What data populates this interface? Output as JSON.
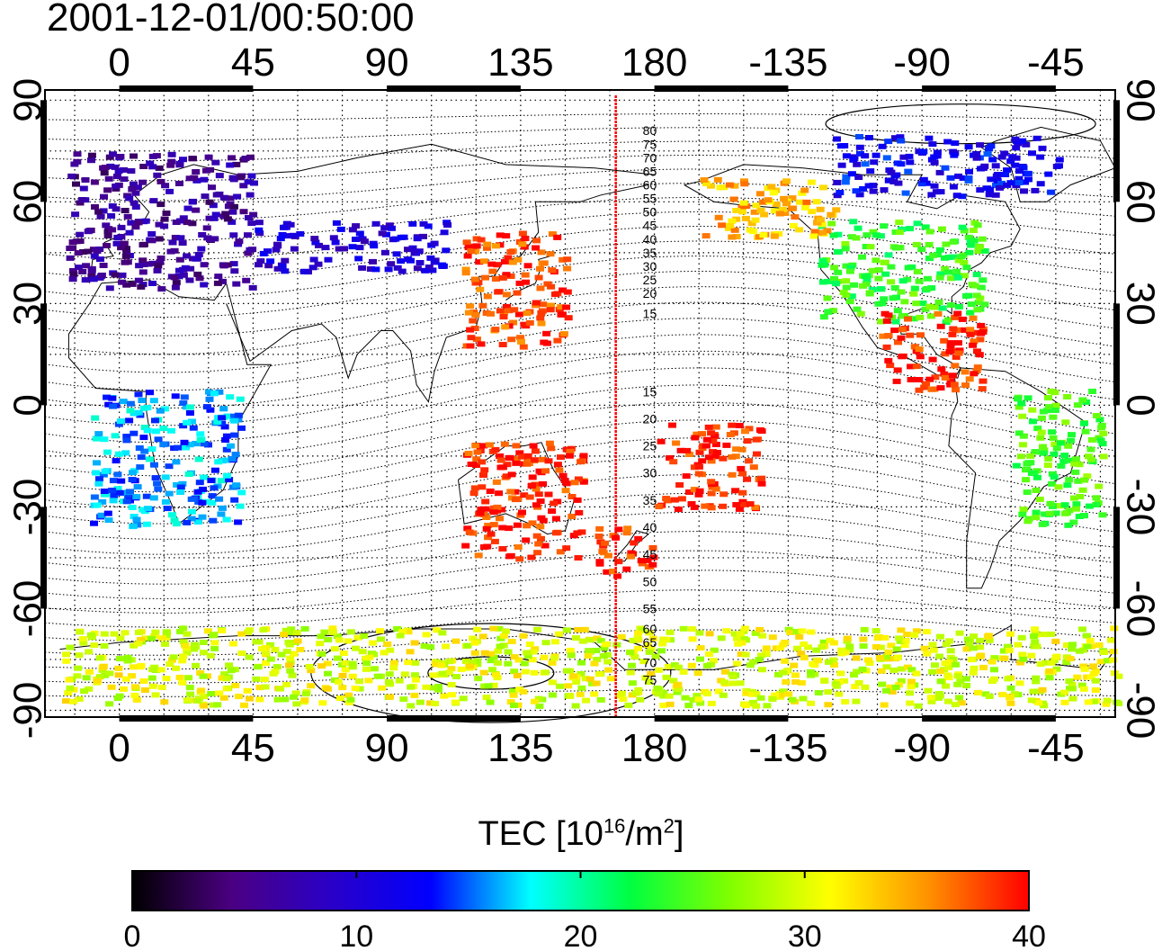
{
  "timestamp": "2001-12-01/00:50:00",
  "map": {
    "lon_ticks": [
      "0",
      "45",
      "90",
      "135",
      "180",
      "-135",
      "-90",
      "-45"
    ],
    "lon_tick_values": [
      0,
      45,
      90,
      135,
      180,
      225,
      270,
      315
    ],
    "lon_range": [
      -25,
      335
    ],
    "lat_ticks": [
      "90",
      "60",
      "30",
      "0",
      "-30",
      "-60",
      "-90"
    ],
    "lat_tick_values": [
      90,
      60,
      30,
      0,
      -30,
      -60,
      -90
    ],
    "lat_range": [
      -92,
      93
    ],
    "grid": "dotted 15 deg",
    "meridian_marker_lon": 167,
    "meridian_marker_color": "#ff0000",
    "magnetic_contour_labels": [
      "80",
      "75",
      "70",
      "65",
      "60",
      "55",
      "50",
      "45",
      "40",
      "35",
      "30",
      "25",
      "20",
      "15",
      "15",
      "20",
      "25",
      "30",
      "35",
      "40",
      "45",
      "50",
      "55",
      "60",
      "65",
      "70",
      "75"
    ],
    "magnetic_contour_label_lats": [
      81,
      77,
      73,
      69,
      65,
      61,
      57,
      53,
      49,
      45,
      41,
      37,
      33,
      27,
      4,
      -4,
      -12,
      -20,
      -28,
      -36,
      -44,
      -52,
      -60,
      -66,
      -70,
      -76,
      -81
    ]
  },
  "colorbar": {
    "title_main": "TEC  [10",
    "title_exp": "16",
    "title_mid": "/m",
    "title_exp2": "2",
    "title_end": "]",
    "tick_labels": [
      "0",
      "10",
      "20",
      "30",
      "40"
    ],
    "range": [
      0,
      40
    ],
    "stops": [
      "#000000",
      "#4b0082",
      "#2a00c8",
      "#0000ff",
      "#00ffff",
      "#00ff40",
      "#80ff00",
      "#ffff00",
      "#ff9000",
      "#ff0000"
    ]
  },
  "tec_regions": [
    {
      "name": "europe",
      "lon": [
        -18,
        45
      ],
      "lat": [
        35,
        75
      ],
      "tec": 6
    },
    {
      "name": "russia-north",
      "lon": [
        45,
        110
      ],
      "lat": [
        40,
        55
      ],
      "tec": 10
    },
    {
      "name": "japan-china",
      "lon": [
        115,
        150
      ],
      "lat": [
        18,
        52
      ],
      "tec": 38
    },
    {
      "name": "north-america",
      "lon": [
        235,
        290
      ],
      "lat": [
        25,
        55
      ],
      "tec": 24
    },
    {
      "name": "alaska-canada-west",
      "lon": [
        195,
        240
      ],
      "lat": [
        50,
        68
      ],
      "tec": 34
    },
    {
      "name": "arctic-canada",
      "lon": [
        240,
        315
      ],
      "lat": [
        62,
        80
      ],
      "tec": 12
    },
    {
      "name": "central-america",
      "lon": [
        255,
        290
      ],
      "lat": [
        5,
        28
      ],
      "tec": 39
    },
    {
      "name": "australia",
      "lon": [
        115,
        155
      ],
      "lat": [
        -45,
        -10
      ],
      "tec": 39
    },
    {
      "name": "new-zealand",
      "lon": [
        160,
        180
      ],
      "lat": [
        -50,
        -35
      ],
      "tec": 39
    },
    {
      "name": "pacific-south",
      "lon": [
        180,
        215
      ],
      "lat": [
        -30,
        -5
      ],
      "tec": 39
    },
    {
      "name": "brazil",
      "lon": [
        300,
        330
      ],
      "lat": [
        -35,
        5
      ],
      "tec": 25
    },
    {
      "name": "africa",
      "lon": [
        -10,
        40
      ],
      "lat": [
        -35,
        5
      ],
      "tec": 16
    },
    {
      "name": "antarctic-coast",
      "lon": [
        -20,
        335
      ],
      "lat": [
        -88,
        -65
      ],
      "tec": 30
    }
  ]
}
